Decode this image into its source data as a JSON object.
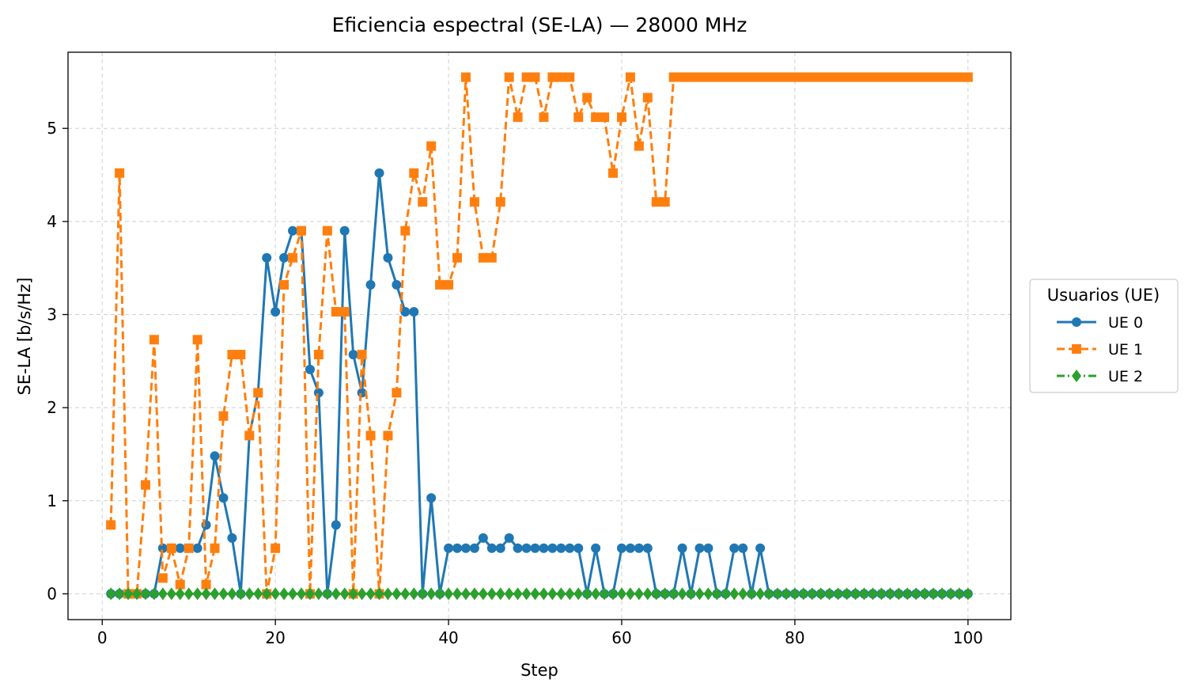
{
  "chart_data": {
    "type": "line",
    "title": "Eficiencia espectral (SE-LA) — 28000 MHz",
    "xlabel": "Step",
    "ylabel": "SE-LA [b/s/Hz]",
    "xlim": [
      -3.95,
      104.95
    ],
    "ylim": [
      -0.277,
      5.818
    ],
    "xticks": [
      0,
      20,
      40,
      60,
      80,
      100
    ],
    "yticks": [
      0,
      1,
      2,
      3,
      4,
      5
    ],
    "grid": true,
    "legend": {
      "title": "Usuarios (UE)",
      "placement": "center-right-outside"
    },
    "x": [
      1,
      2,
      3,
      4,
      5,
      6,
      7,
      8,
      9,
      10,
      11,
      12,
      13,
      14,
      15,
      16,
      17,
      18,
      19,
      20,
      21,
      22,
      23,
      24,
      25,
      26,
      27,
      28,
      29,
      30,
      31,
      32,
      33,
      34,
      35,
      36,
      37,
      38,
      39,
      40,
      41,
      42,
      43,
      44,
      45,
      46,
      47,
      48,
      49,
      50,
      51,
      52,
      53,
      54,
      55,
      56,
      57,
      58,
      59,
      60,
      61,
      62,
      63,
      64,
      65,
      66,
      67,
      68,
      69,
      70,
      71,
      72,
      73,
      74,
      75,
      76,
      77,
      78,
      79,
      80,
      81,
      82,
      83,
      84,
      85,
      86,
      87,
      88,
      89,
      90,
      91,
      92,
      93,
      94,
      95,
      96,
      97,
      98,
      99,
      100
    ],
    "series": [
      {
        "name": "UE 0",
        "color": "#1f77b4",
        "linestyle": "solid",
        "marker": "circle",
        "values": [
          0,
          0,
          0,
          0,
          0,
          0,
          0.49,
          0.49,
          0.49,
          0.49,
          0.49,
          0.74,
          1.48,
          1.03,
          0.6,
          0,
          1.7,
          2.16,
          3.61,
          3.03,
          3.61,
          3.9,
          3.9,
          2.41,
          2.16,
          0,
          0.74,
          3.9,
          2.57,
          2.16,
          3.32,
          4.52,
          3.61,
          3.32,
          3.03,
          3.03,
          0,
          1.03,
          0,
          0.49,
          0.49,
          0.49,
          0.49,
          0.6,
          0.49,
          0.49,
          0.6,
          0.49,
          0.49,
          0.49,
          0.49,
          0.49,
          0.49,
          0.49,
          0.49,
          0,
          0.49,
          0,
          0,
          0.49,
          0.49,
          0.49,
          0.49,
          0,
          0,
          0,
          0.49,
          0,
          0.49,
          0.49,
          0,
          0,
          0.49,
          0.49,
          0,
          0.49,
          0,
          0,
          0,
          0,
          0,
          0,
          0,
          0,
          0,
          0,
          0,
          0,
          0,
          0,
          0,
          0,
          0,
          0,
          0,
          0,
          0,
          0,
          0,
          0
        ]
      },
      {
        "name": "UE 1",
        "color": "#ff7f0e",
        "linestyle": "dashed",
        "marker": "square",
        "values": [
          0.74,
          4.52,
          0,
          0,
          1.17,
          2.73,
          0.17,
          0.49,
          0.1,
          0.49,
          2.73,
          0.1,
          0.49,
          1.91,
          2.57,
          2.57,
          1.7,
          2.16,
          0,
          0.49,
          3.32,
          3.61,
          3.9,
          0,
          2.57,
          3.9,
          3.03,
          3.03,
          0,
          2.57,
          1.7,
          0,
          1.7,
          2.16,
          3.9,
          4.52,
          4.21,
          4.81,
          3.32,
          3.32,
          3.61,
          5.55,
          4.21,
          3.61,
          3.61,
          4.21,
          5.55,
          5.12,
          5.55,
          5.55,
          5.12,
          5.55,
          5.55,
          5.55,
          5.12,
          5.33,
          5.12,
          5.12,
          4.52,
          5.12,
          5.55,
          4.81,
          5.33,
          4.21,
          4.21,
          5.55,
          5.55,
          5.55,
          5.55,
          5.55,
          5.55,
          5.55,
          5.55,
          5.55,
          5.55,
          5.55,
          5.55,
          5.55,
          5.55,
          5.55,
          5.55,
          5.55,
          5.55,
          5.55,
          5.55,
          5.55,
          5.55,
          5.55,
          5.55,
          5.55,
          5.55,
          5.55,
          5.55,
          5.55,
          5.55,
          5.55,
          5.55,
          5.55,
          5.55,
          5.55
        ]
      },
      {
        "name": "UE 2",
        "color": "#2ca02c",
        "linestyle": "dashdot",
        "marker": "diamond",
        "values": [
          0,
          0,
          0,
          0,
          0,
          0,
          0,
          0,
          0,
          0,
          0,
          0,
          0,
          0,
          0,
          0,
          0,
          0,
          0,
          0,
          0,
          0,
          0,
          0,
          0,
          0,
          0,
          0,
          0,
          0,
          0,
          0,
          0,
          0,
          0,
          0,
          0,
          0,
          0,
          0,
          0,
          0,
          0,
          0,
          0,
          0,
          0,
          0,
          0,
          0,
          0,
          0,
          0,
          0,
          0,
          0,
          0,
          0,
          0,
          0,
          0,
          0,
          0,
          0,
          0,
          0,
          0,
          0,
          0,
          0,
          0,
          0,
          0,
          0,
          0,
          0,
          0,
          0,
          0,
          0,
          0,
          0,
          0,
          0,
          0,
          0,
          0,
          0,
          0,
          0,
          0,
          0,
          0,
          0,
          0,
          0,
          0,
          0,
          0,
          0
        ]
      }
    ]
  }
}
